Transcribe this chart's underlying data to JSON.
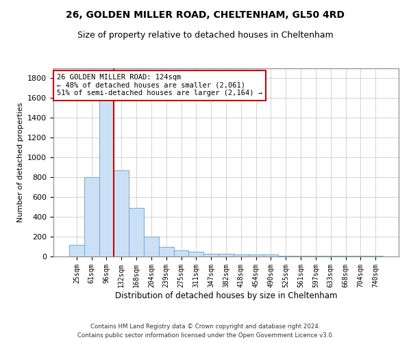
{
  "title": "26, GOLDEN MILLER ROAD, CHELTENHAM, GL50 4RD",
  "subtitle": "Size of property relative to detached houses in Cheltenham",
  "xlabel": "Distribution of detached houses by size in Cheltenham",
  "ylabel": "Number of detached properties",
  "bar_labels": [
    "25sqm",
    "61sqm",
    "96sqm",
    "132sqm",
    "168sqm",
    "204sqm",
    "239sqm",
    "275sqm",
    "311sqm",
    "347sqm",
    "382sqm",
    "418sqm",
    "454sqm",
    "490sqm",
    "525sqm",
    "561sqm",
    "597sqm",
    "633sqm",
    "668sqm",
    "704sqm",
    "740sqm"
  ],
  "bar_values": [
    115,
    800,
    1630,
    870,
    490,
    200,
    100,
    65,
    45,
    30,
    25,
    20,
    20,
    20,
    5,
    5,
    5,
    5,
    5,
    5,
    5
  ],
  "bar_color": "#cce0f5",
  "bar_edge_color": "#7ab0d4",
  "vline_x": 2.5,
  "vline_color": "#cc0000",
  "annotation_text": "26 GOLDEN MILLER ROAD: 124sqm\n← 48% of detached houses are smaller (2,061)\n51% of semi-detached houses are larger (2,164) →",
  "annotation_box_color": "#ffffff",
  "annotation_box_edge": "#cc0000",
  "ylim": [
    0,
    1900
  ],
  "yticks": [
    0,
    200,
    400,
    600,
    800,
    1000,
    1200,
    1400,
    1600,
    1800
  ],
  "footer1": "Contains HM Land Registry data © Crown copyright and database right 2024.",
  "footer2": "Contains public sector information licensed under the Open Government Licence v3.0.",
  "background_color": "#ffffff",
  "grid_color": "#cccccc"
}
